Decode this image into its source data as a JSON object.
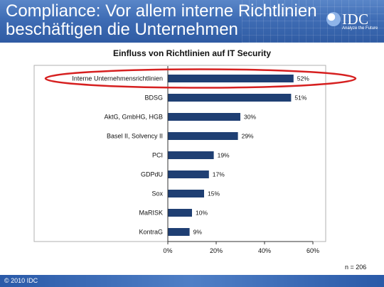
{
  "slide": {
    "title_line1": "Compliance: Vor allem interne Richtlinien",
    "title_line2": "beschäftigen die Unternehmen",
    "logo_text": "IDC",
    "logo_tagline": "Analyze the Future",
    "sample_note": "n = 206",
    "copyright": "© 2010 IDC"
  },
  "chart_data": {
    "type": "bar",
    "orientation": "horizontal",
    "title": "Einfluss von Richtlinien auf IT Security",
    "categories": [
      "Interne Unternehmensrichtlinien",
      "BDSG",
      "AktG, GmbHG, HGB",
      "Basel II, Solvency II",
      "PCI",
      "GDPdU",
      "Sox",
      "MaRISK",
      "KontraG"
    ],
    "values": [
      52,
      51,
      30,
      29,
      19,
      17,
      15,
      10,
      9
    ],
    "value_labels": [
      "52%",
      "51%",
      "30%",
      "29%",
      "19%",
      "17%",
      "15%",
      "10%",
      "9%"
    ],
    "xlim": [
      0,
      60
    ],
    "xticks": [
      0,
      20,
      40,
      60
    ],
    "xtick_labels": [
      "0%",
      "20%",
      "40%",
      "60%"
    ],
    "grid": false,
    "bar_color": "#1f3f73",
    "highlight_category": "Interne Unternehmensrichtlinien",
    "highlight_color": "#d62020"
  }
}
